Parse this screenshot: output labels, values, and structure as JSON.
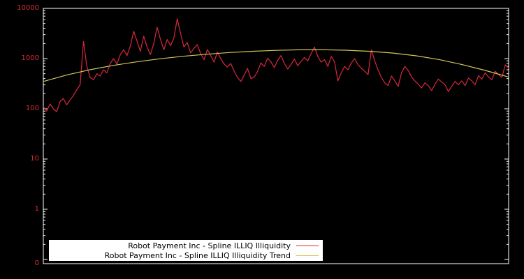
{
  "chart_data": {
    "type": "line",
    "title": "",
    "background": "#000000",
    "frame_color": "#ffffff",
    "x_axis": {
      "tick_labels": []
    },
    "y_axis": {
      "scale": "log",
      "tick_labels": [
        "10000",
        "1000",
        "100",
        "10",
        "1",
        "0"
      ],
      "label_color": "#d62e2e",
      "range": [
        0.1,
        10000
      ]
    },
    "legend": {
      "position": "bottom-left-inside",
      "background": "#ffffff",
      "text_color": "#000000"
    },
    "series": [
      {
        "name": "Robot Payment Inc - Spline ILLIQ Illiquidity",
        "color": "#d8283c",
        "values": [
          110,
          90,
          125,
          100,
          88,
          140,
          160,
          120,
          150,
          185,
          240,
          300,
          2200,
          700,
          420,
          380,
          500,
          450,
          600,
          520,
          800,
          1000,
          780,
          1200,
          1500,
          1150,
          1800,
          3500,
          2200,
          1400,
          2800,
          1700,
          1200,
          2000,
          4200,
          2400,
          1500,
          2400,
          1800,
          2600,
          6200,
          3200,
          1700,
          2100,
          1300,
          1600,
          1900,
          1250,
          950,
          1500,
          1150,
          850,
          1350,
          1000,
          780,
          680,
          800,
          560,
          420,
          350,
          470,
          640,
          400,
          430,
          550,
          820,
          700,
          1020,
          860,
          660,
          920,
          1150,
          800,
          620,
          760,
          980,
          720,
          880,
          1050,
          900,
          1250,
          1700,
          1100,
          850,
          950,
          700,
          1100,
          870,
          360,
          520,
          700,
          600,
          820,
          1000,
          760,
          640,
          560,
          480,
          1500,
          900,
          600,
          420,
          330,
          290,
          450,
          360,
          280,
          520,
          700,
          580,
          430,
          360,
          310,
          260,
          330,
          290,
          230,
          310,
          390,
          340,
          300,
          220,
          280,
          350,
          300,
          360,
          290,
          410,
          360,
          300,
          460,
          390,
          520,
          430,
          380,
          560,
          480,
          420,
          750,
          650
        ]
      },
      {
        "name": "Robot Payment Inc - Spline ILLIQ Illiquidity Trend",
        "color": "#d0c75a",
        "values": [
          350,
          470,
          600,
          730,
          860,
          990,
          1110,
          1220,
          1320,
          1400,
          1460,
          1495,
          1500,
          1470,
          1400,
          1290,
          1140,
          960,
          760,
          580,
          430
        ]
      }
    ]
  }
}
